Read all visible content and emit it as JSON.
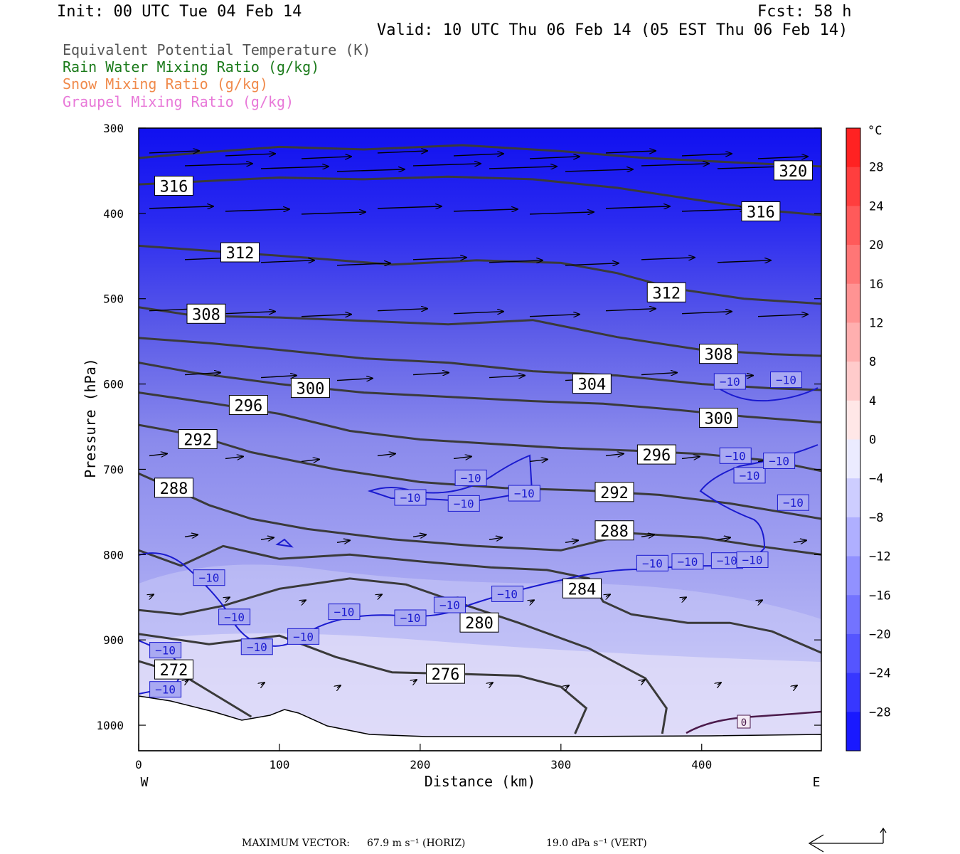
{
  "header": {
    "init": "Init: 00 UTC Tue 04 Feb 14",
    "fcst": "Fcst:   58 h",
    "valid": "Valid: 10 UTC Thu 06 Feb 14 (05 EST Thu 06 Feb 14)"
  },
  "legend": [
    {
      "text": "Equivalent Potential Temperature (K)",
      "color": "#555555"
    },
    {
      "text": "Rain Water Mixing Ratio (g/kg)",
      "color": "#1a7a1a"
    },
    {
      "text": "Snow Mixing Ratio (g/kg)",
      "color": "#f08a4b"
    },
    {
      "text": "Graupel Mixing Ratio (g/kg)",
      "color": "#e878d8"
    }
  ],
  "footer": {
    "max_vector_label": "MAXIMUM VECTOR:",
    "horiz": "67.9 m s⁻¹ (HORIZ)",
    "vert": "19.0 dPa s⁻¹ (VERT)"
  },
  "chart_data": {
    "type": "heatmap",
    "title": "",
    "xlabel": "Distance (km)",
    "ylabel": "Pressure (hPa)",
    "xlim": [
      0,
      485
    ],
    "ylim": [
      1030,
      300
    ],
    "x_ticks": [
      0,
      100,
      200,
      300,
      400
    ],
    "y_ticks": [
      300,
      400,
      500,
      600,
      700,
      800,
      900,
      1000
    ],
    "x_end_labels": {
      "left": "W",
      "right": "E"
    },
    "colorbar": {
      "unit": "°C",
      "levels": [
        28,
        24,
        20,
        16,
        12,
        8,
        4,
        0,
        -4,
        -8,
        -12,
        -16,
        -20,
        -24,
        -28
      ],
      "range": [
        -32,
        32
      ]
    },
    "theta_e_contours": [
      {
        "label": "272",
        "lx": 25,
        "lp": 935,
        "points": [
          [
            0,
            925
          ],
          [
            30,
            940
          ],
          [
            55,
            965
          ],
          [
            80,
            990
          ]
        ]
      },
      {
        "label": "276",
        "lx": 218,
        "lp": 940,
        "points": [
          [
            0,
            893
          ],
          [
            50,
            905
          ],
          [
            100,
            895
          ],
          [
            140,
            920
          ],
          [
            180,
            938
          ],
          [
            230,
            940
          ],
          [
            270,
            942
          ],
          [
            300,
            955
          ],
          [
            318,
            980
          ],
          [
            310,
            1010
          ]
        ]
      },
      {
        "label": "280",
        "lx": 242,
        "lp": 880,
        "points": [
          [
            0,
            865
          ],
          [
            30,
            870
          ],
          [
            60,
            860
          ],
          [
            100,
            840
          ],
          [
            150,
            828
          ],
          [
            190,
            835
          ],
          [
            230,
            858
          ],
          [
            270,
            880
          ],
          [
            320,
            910
          ],
          [
            360,
            945
          ],
          [
            375,
            980
          ],
          [
            372,
            1010
          ]
        ]
      },
      {
        "label": "284",
        "lx": 315,
        "lp": 840,
        "points": [
          [
            0,
            795
          ],
          [
            30,
            813
          ],
          [
            60,
            790
          ],
          [
            100,
            805
          ],
          [
            150,
            800
          ],
          [
            200,
            808
          ],
          [
            250,
            815
          ],
          [
            290,
            818
          ],
          [
            320,
            828
          ],
          [
            330,
            855
          ],
          [
            350,
            870
          ],
          [
            390,
            880
          ],
          [
            420,
            880
          ],
          [
            450,
            890
          ],
          [
            485,
            915
          ]
        ]
      },
      {
        "label": "288",
        "lx": 25,
        "lp": 722,
        "points": [
          [
            0,
            705
          ],
          [
            30,
            727
          ],
          [
            50,
            742
          ],
          [
            80,
            758
          ],
          [
            120,
            770
          ],
          [
            180,
            782
          ],
          [
            240,
            790
          ],
          [
            300,
            795
          ],
          [
            350,
            775
          ],
          [
            400,
            780
          ],
          [
            440,
            790
          ],
          [
            485,
            800
          ]
        ]
      },
      {
        "label": "288",
        "lx": 338,
        "lp": 772,
        "points": []
      },
      {
        "label": "292",
        "lx": 42,
        "lp": 665,
        "points": [
          [
            0,
            648
          ],
          [
            40,
            660
          ],
          [
            80,
            680
          ],
          [
            140,
            700
          ],
          [
            200,
            715
          ],
          [
            260,
            722
          ],
          [
            320,
            725
          ],
          [
            370,
            730
          ],
          [
            420,
            740
          ],
          [
            485,
            758
          ]
        ]
      },
      {
        "label": "292",
        "lx": 338,
        "lp": 727,
        "points": []
      },
      {
        "label": "296",
        "lx": 78,
        "lp": 625,
        "points": [
          [
            0,
            610
          ],
          [
            50,
            622
          ],
          [
            100,
            635
          ],
          [
            150,
            655
          ],
          [
            200,
            665
          ],
          [
            250,
            670
          ],
          [
            300,
            675
          ],
          [
            350,
            678
          ],
          [
            400,
            682
          ],
          [
            450,
            690
          ],
          [
            485,
            702
          ]
        ]
      },
      {
        "label": "296",
        "lx": 368,
        "lp": 683,
        "points": []
      },
      {
        "label": "300",
        "lx": 122,
        "lp": 605,
        "points": [
          [
            0,
            575
          ],
          [
            40,
            587
          ],
          [
            100,
            600
          ],
          [
            160,
            610
          ],
          [
            220,
            615
          ],
          [
            280,
            620
          ],
          [
            330,
            623
          ],
          [
            380,
            630
          ],
          [
            430,
            638
          ],
          [
            485,
            645
          ]
        ]
      },
      {
        "label": "300",
        "lx": 412,
        "lp": 640,
        "points": []
      },
      {
        "label": "304",
        "lx": 322,
        "lp": 600,
        "points": [
          [
            0,
            546
          ],
          [
            50,
            552
          ],
          [
            100,
            560
          ],
          [
            160,
            570
          ],
          [
            220,
            575
          ],
          [
            280,
            585
          ],
          [
            340,
            590
          ],
          [
            400,
            600
          ],
          [
            450,
            605
          ],
          [
            485,
            607
          ]
        ]
      },
      {
        "label": "308",
        "lx": 48,
        "lp": 518,
        "points": [
          [
            0,
            510
          ],
          [
            40,
            520
          ],
          [
            100,
            522
          ],
          [
            160,
            526
          ],
          [
            220,
            530
          ],
          [
            280,
            525
          ],
          [
            340,
            545
          ],
          [
            400,
            560
          ],
          [
            450,
            565
          ],
          [
            485,
            567
          ]
        ]
      },
      {
        "label": "308",
        "lx": 412,
        "lp": 565,
        "points": []
      },
      {
        "label": "312",
        "lx": 72,
        "lp": 446,
        "points": [
          [
            0,
            438
          ],
          [
            60,
            445
          ],
          [
            120,
            452
          ],
          [
            180,
            460
          ],
          [
            240,
            455
          ],
          [
            300,
            458
          ],
          [
            340,
            470
          ],
          [
            380,
            488
          ],
          [
            430,
            500
          ],
          [
            485,
            506
          ]
        ]
      },
      {
        "label": "312",
        "lx": 375,
        "lp": 493,
        "points": []
      },
      {
        "label": "316",
        "lx": 25,
        "lp": 368,
        "points": [
          [
            0,
            366
          ],
          [
            50,
            362
          ],
          [
            100,
            358
          ],
          [
            160,
            360
          ],
          [
            220,
            357
          ],
          [
            280,
            360
          ],
          [
            340,
            370
          ],
          [
            400,
            385
          ],
          [
            450,
            397
          ],
          [
            485,
            402
          ]
        ]
      },
      {
        "label": "316",
        "lx": 442,
        "lp": 398,
        "points": []
      },
      {
        "label": "320",
        "lx": 465,
        "lp": 350,
        "points": [
          [
            0,
            335
          ],
          [
            50,
            328
          ],
          [
            100,
            322
          ],
          [
            160,
            325
          ],
          [
            230,
            320
          ],
          [
            300,
            327
          ],
          [
            360,
            335
          ],
          [
            420,
            340
          ],
          [
            485,
            345
          ]
        ]
      }
    ],
    "temp_minus10_labels": [
      [
        50,
        827
      ],
      [
        68,
        873
      ],
      [
        84,
        908
      ],
      [
        117,
        896
      ],
      [
        146,
        867
      ],
      [
        193,
        874
      ],
      [
        221,
        859
      ],
      [
        262,
        846
      ],
      [
        193,
        733
      ],
      [
        231,
        740
      ],
      [
        274,
        728
      ],
      [
        236,
        710
      ],
      [
        19,
        912
      ],
      [
        19,
        958
      ],
      [
        365,
        810
      ],
      [
        390,
        808
      ],
      [
        418,
        807
      ],
      [
        436,
        806
      ],
      [
        465,
        739
      ],
      [
        434,
        707
      ],
      [
        455,
        690
      ],
      [
        424,
        684
      ],
      [
        420,
        597
      ],
      [
        460,
        595
      ]
    ],
    "wind_vectors_note": "schematic"
  }
}
